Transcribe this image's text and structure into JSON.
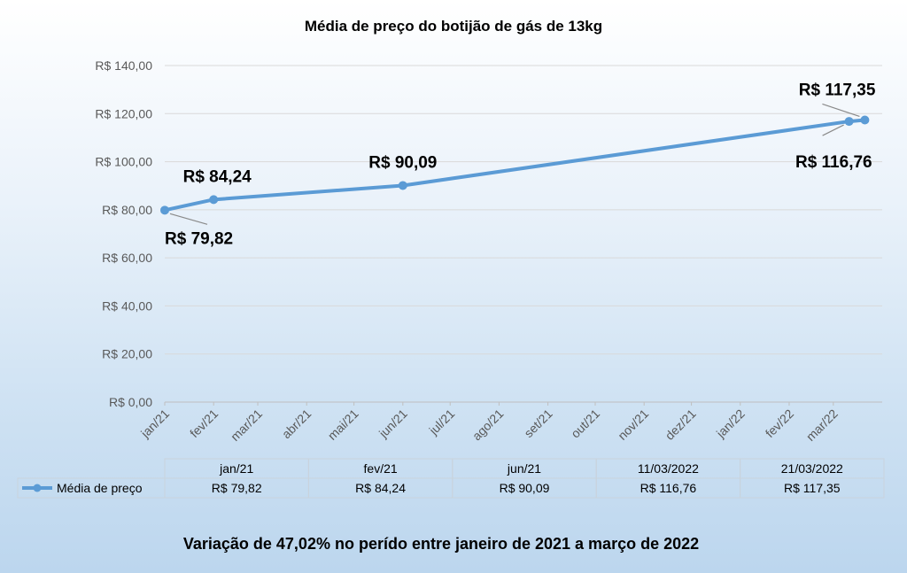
{
  "chart_data": {
    "type": "line",
    "title": "Média de preço do botijão de gás de 13kg",
    "ylim": [
      0,
      140
    ],
    "y_ticks": [
      "R$ 0,00",
      "R$ 20,00",
      "R$ 40,00",
      "R$ 60,00",
      "R$ 80,00",
      "R$ 100,00",
      "R$ 120,00",
      "R$ 140,00"
    ],
    "y_tick_values": [
      0,
      20,
      40,
      60,
      80,
      100,
      120,
      140
    ],
    "x_ticks": [
      "jan/21",
      "fev/21",
      "mar/21",
      "abr/21",
      "mai/21",
      "jun/21",
      "jul/21",
      "ago/21",
      "set/21",
      "out/21",
      "nov/21",
      "dez/21",
      "jan/22",
      "fev/22",
      "mar/22"
    ],
    "grid": true,
    "legend": "table-left",
    "series": [
      {
        "name": "Média de preço",
        "color": "#5b9bd5",
        "points": [
          {
            "x": "2021-01-01",
            "y": 79.82,
            "label": "R$ 79,82"
          },
          {
            "x": "2021-02-01",
            "y": 84.24,
            "label": "R$ 84,24"
          },
          {
            "x": "2021-06-01",
            "y": 90.09,
            "label": "R$ 90,09"
          },
          {
            "x": "2022-03-11",
            "y": 116.76,
            "label": "R$ 116,76"
          },
          {
            "x": "2022-03-21",
            "y": 117.35,
            "label": "R$ 117,35"
          }
        ]
      }
    ],
    "table": {
      "headers": [
        "jan/21",
        "fev/21",
        "jun/21",
        "11/03/2022",
        "21/03/2022"
      ],
      "row_label": "Média de preço",
      "values": [
        "R$ 79,82",
        "R$ 84,24",
        "R$ 90,09",
        "R$ 116,76",
        "R$ 117,35"
      ]
    }
  },
  "footer": "Variação de 47,02%  no perído entre janeiro de 2021 a março de 2022"
}
